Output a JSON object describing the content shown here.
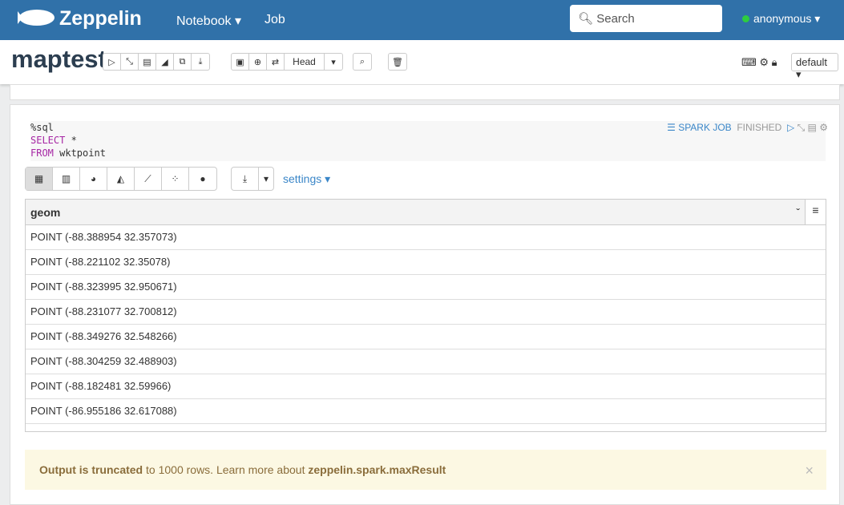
{
  "nav": {
    "brand": "Zeppelin",
    "notebook": "Notebook",
    "job": "Job",
    "search_placeholder": "Search",
    "user": "anonymous"
  },
  "header": {
    "title": "maptest",
    "head_label": "Head",
    "interpreter": "default"
  },
  "paragraph": {
    "code": {
      "line1": "%sql",
      "kw1": "SELECT",
      "rest1": " *",
      "kw2": "FROM",
      "rest2": " wktpoint"
    },
    "spark_job": "SPARK JOB",
    "status": "FINISHED",
    "settings": "settings",
    "table": {
      "column": "geom",
      "rows": [
        "POINT (-88.388954 32.357073)",
        "POINT (-88.221102 32.35078)",
        "POINT (-88.323995 32.950671)",
        "POINT (-88.231077 32.700812)",
        "POINT (-88.349276 32.548266)",
        "POINT (-88.304259 32.488903)",
        "POINT (-88.182481 32.59966)",
        "POINT (-86.955186 32.617088)"
      ]
    },
    "alert": {
      "bold1": "Output is truncated",
      "text": " to 1000 rows. Learn more about ",
      "bold2": "zeppelin.spark.maxResult"
    }
  }
}
